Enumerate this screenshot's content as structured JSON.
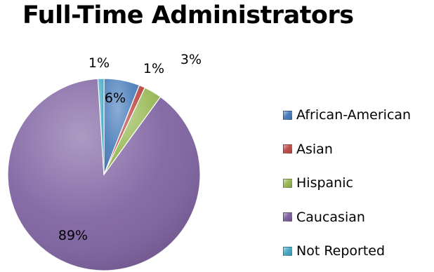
{
  "title": "Full-Time Administrators",
  "chart_data": {
    "type": "pie",
    "title": "Full-Time Administrators",
    "categories": [
      "African-American",
      "Asian",
      "Hispanic",
      "Caucasian",
      "Not Reported"
    ],
    "values": [
      6,
      1,
      3,
      89,
      1
    ],
    "labels": [
      "6%",
      "1%",
      "3%",
      "89%",
      "1%"
    ],
    "colors": [
      "#4F81BD",
      "#C0504D",
      "#9BBB59",
      "#8064A2",
      "#4BACC6"
    ],
    "legend_position": "right"
  }
}
